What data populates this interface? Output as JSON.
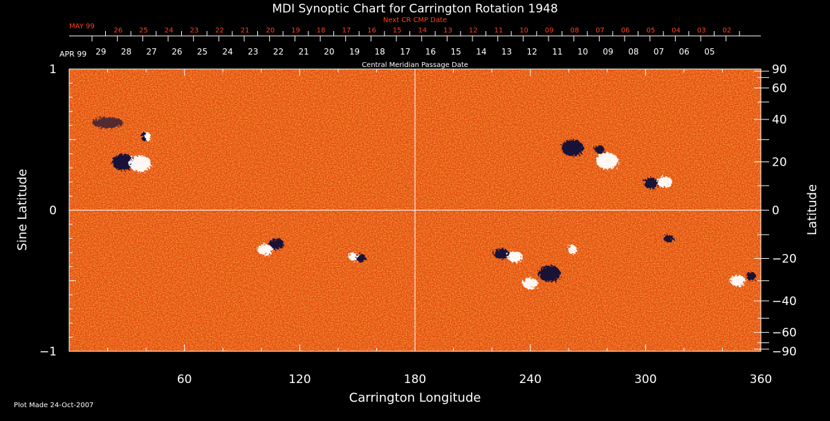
{
  "chart_data": {
    "type": "heatmap",
    "title": "MDI Synoptic Chart for Carrington Rotation 1948",
    "xlabel": "Carrington Longitude",
    "ylabel_left": "Sine Latitude",
    "ylabel_right": "Latitude",
    "xlim": [
      0,
      360
    ],
    "ylim": [
      -1,
      1
    ],
    "x_ticks": [
      60,
      120,
      180,
      240,
      300,
      360
    ],
    "x_tick_labels": [
      "60",
      "120",
      "180",
      "240",
      "300",
      "360"
    ],
    "y_left_ticks": [
      1,
      0,
      -1
    ],
    "y_left_tick_labels": [
      "1",
      "0",
      "−1"
    ],
    "y_right_ticks": [
      90,
      60,
      40,
      20,
      0,
      -20,
      -40,
      -60,
      -90
    ],
    "y_right_tick_labels": [
      "90",
      "60",
      "40",
      "20",
      "0",
      "−20",
      "−40",
      "−60",
      "−90"
    ],
    "grid_lines": {
      "longitude": 180,
      "sine_latitude": 0
    },
    "top_axis_red": {
      "label": "Next CR CMP Date",
      "month_label": "MAY 99",
      "dates": [
        "26",
        "25",
        "24",
        "23",
        "22",
        "21",
        "20",
        "19",
        "18",
        "17",
        "16",
        "15",
        "14",
        "13",
        "12",
        "11",
        "10",
        "09",
        "08",
        "07",
        "06",
        "05",
        "04",
        "03",
        "02"
      ],
      "first_date_x_start": 25.5,
      "date_step_deg": 13.2
    },
    "top_axis_white": {
      "label": "Central Meridian Passage Date",
      "month_label": "APR 99",
      "dates": [
        "29",
        "28",
        "27",
        "26",
        "25",
        "24",
        "23",
        "22",
        "21",
        "20",
        "19",
        "18",
        "17",
        "16",
        "15",
        "14",
        "13",
        "12",
        "11",
        "10",
        "09",
        "08",
        "07",
        "06",
        "05"
      ],
      "first_date_x_start": 16.5,
      "date_step_deg": 13.2
    },
    "colors": {
      "background_field": "#e84a10",
      "positive_polarity": "#ffffff",
      "negative_polarity": "#0a0a3a",
      "red_axis": "#ff4020"
    },
    "field_regions": [
      {
        "lon": 28,
        "sinlat": 0.34,
        "polarity": "negative",
        "size": "large"
      },
      {
        "lon": 37,
        "sinlat": 0.33,
        "polarity": "positive",
        "size": "large"
      },
      {
        "lon": 40,
        "sinlat": 0.52,
        "polarity": "mixed",
        "size": "small"
      },
      {
        "lon": 20,
        "sinlat": 0.62,
        "polarity": "negative",
        "size": "diffuse"
      },
      {
        "lon": 108,
        "sinlat": -0.24,
        "polarity": "negative",
        "size": "medium"
      },
      {
        "lon": 102,
        "sinlat": -0.28,
        "polarity": "positive",
        "size": "medium"
      },
      {
        "lon": 148,
        "sinlat": -0.33,
        "polarity": "positive",
        "size": "small"
      },
      {
        "lon": 152,
        "sinlat": -0.34,
        "polarity": "negative",
        "size": "small"
      },
      {
        "lon": 262,
        "sinlat": 0.44,
        "polarity": "negative",
        "size": "large"
      },
      {
        "lon": 280,
        "sinlat": 0.35,
        "polarity": "positive",
        "size": "large"
      },
      {
        "lon": 276,
        "sinlat": 0.43,
        "polarity": "negative",
        "size": "small"
      },
      {
        "lon": 303,
        "sinlat": 0.19,
        "polarity": "negative",
        "size": "medium"
      },
      {
        "lon": 310,
        "sinlat": 0.2,
        "polarity": "positive",
        "size": "medium"
      },
      {
        "lon": 225,
        "sinlat": -0.31,
        "polarity": "negative",
        "size": "medium"
      },
      {
        "lon": 232,
        "sinlat": -0.33,
        "polarity": "positive",
        "size": "medium"
      },
      {
        "lon": 250,
        "sinlat": -0.45,
        "polarity": "negative",
        "size": "large"
      },
      {
        "lon": 240,
        "sinlat": -0.52,
        "polarity": "positive",
        "size": "medium"
      },
      {
        "lon": 262,
        "sinlat": -0.28,
        "polarity": "positive",
        "size": "small"
      },
      {
        "lon": 348,
        "sinlat": -0.5,
        "polarity": "positive",
        "size": "medium"
      },
      {
        "lon": 355,
        "sinlat": -0.47,
        "polarity": "negative",
        "size": "small"
      },
      {
        "lon": 312,
        "sinlat": -0.2,
        "polarity": "negative",
        "size": "small"
      }
    ]
  },
  "footer": {
    "plot_made": "Plot Made 24-Oct-2007"
  }
}
